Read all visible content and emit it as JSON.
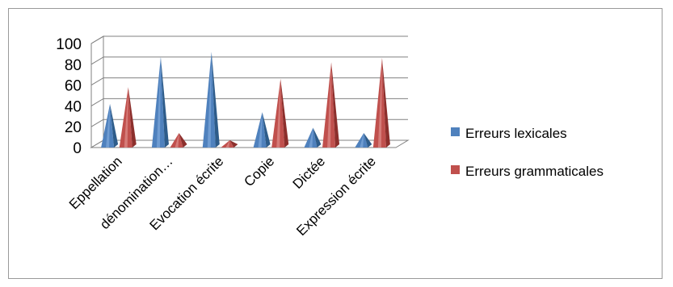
{
  "chart_data": {
    "type": "bar",
    "variant": "3d-pyramid",
    "title": "",
    "xlabel": "",
    "ylabel": "",
    "ylim": [
      0,
      100
    ],
    "yticks": [
      "0",
      "20",
      "40",
      "60",
      "80",
      "100"
    ],
    "grid": true,
    "legend_position": "right",
    "categories": [
      "Eppellation",
      "dénomination…",
      "Evocation écrite",
      "Copie",
      "Dictée",
      "Expression écrite"
    ],
    "series": [
      {
        "name": "Erreurs lexicales",
        "color": "#4F81BD",
        "values": [
          42,
          87,
          92,
          34,
          19,
          14
        ]
      },
      {
        "name": "Erreurs grammaticales",
        "color": "#C0504D",
        "values": [
          58,
          14,
          7,
          66,
          82,
          86
        ]
      }
    ]
  }
}
